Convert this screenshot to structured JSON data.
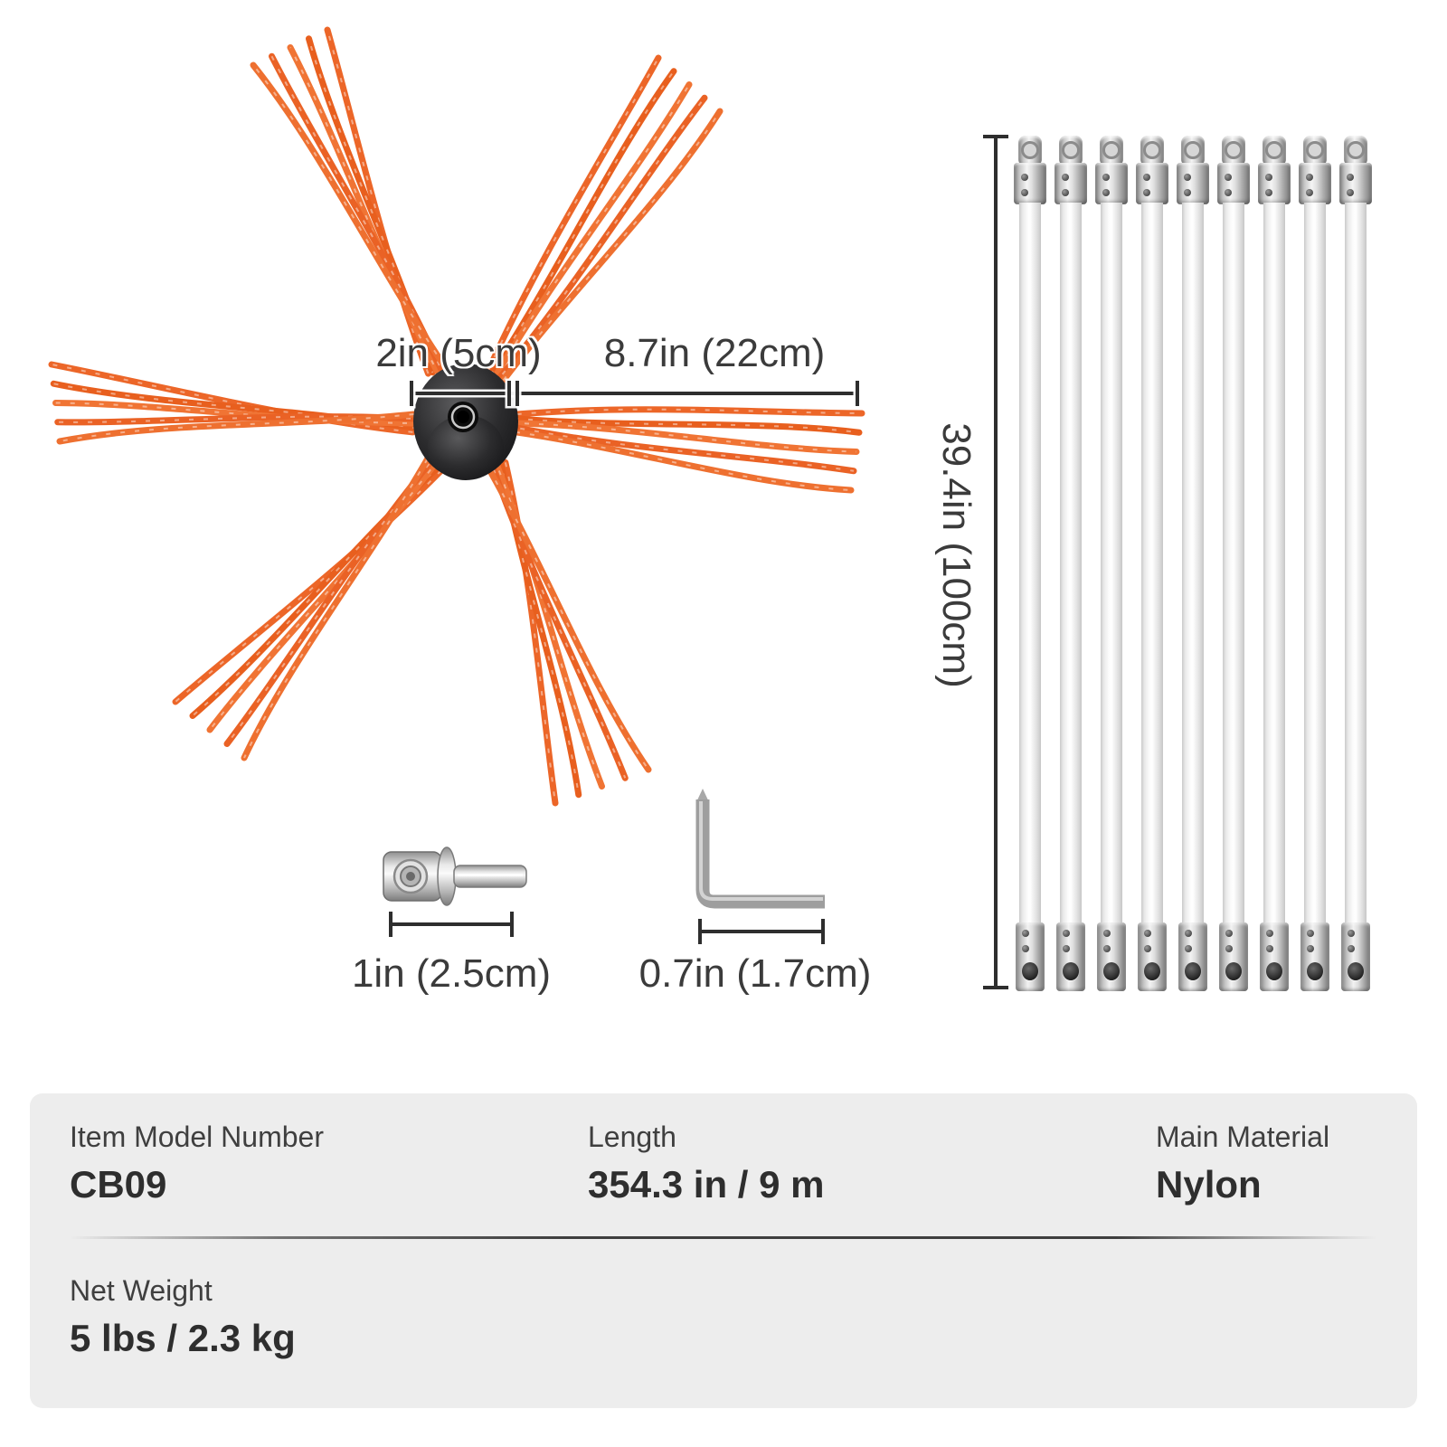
{
  "dimensions": {
    "brush_hub": "2in (5cm)",
    "brush_bristle": "8.7in (22cm)",
    "rod_length": "39.4in (100cm)",
    "adapter_length": "1in (2.5cm)",
    "hex_key_length": "0.7in (1.7cm)"
  },
  "rods": {
    "count": 9
  },
  "specs": [
    {
      "label": "Item Model Number",
      "value": "CB09"
    },
    {
      "label": "Length",
      "value": "354.3 in / 9 m"
    },
    {
      "label": "Main Material",
      "value": "Nylon"
    },
    {
      "label": "Net Weight",
      "value": "5 lbs / 2.3 kg"
    }
  ],
  "colors": {
    "brush_orange": "#EC6628",
    "hub_black": "#1F1F1F",
    "dimension_line": "#2E2E2E",
    "panel_background": "#EDEDED",
    "label_text": "#3F3F3F",
    "value_text": "#2E2E2E",
    "metal_gray": "#B5B5B5"
  }
}
